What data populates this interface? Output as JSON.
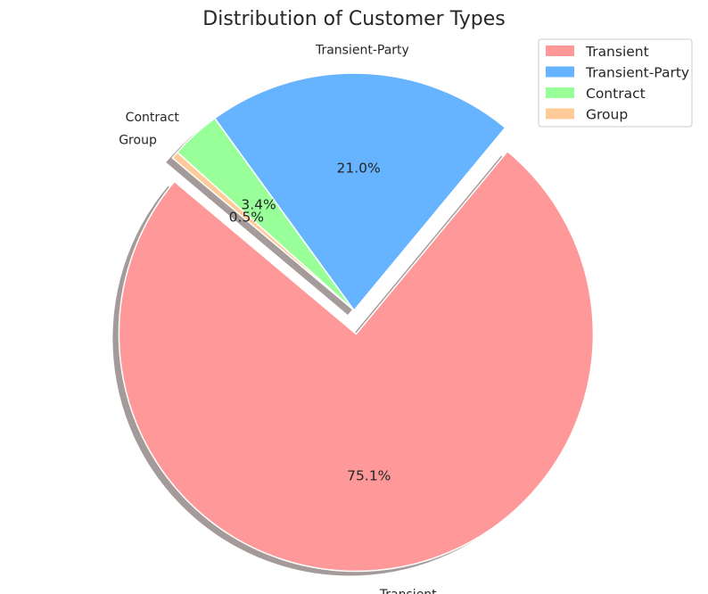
{
  "chart_data": {
    "type": "pie",
    "title": "Distribution of Customer Types",
    "categories": [
      "Transient",
      "Transient-Party",
      "Contract",
      "Group"
    ],
    "values": [
      75.1,
      21.0,
      3.4,
      0.5
    ],
    "percent_labels": [
      "75.1%",
      "21.0%",
      "3.4%",
      "0.5%"
    ],
    "colors": [
      "#ff9999",
      "#66b3ff",
      "#99ff99",
      "#ffcc99"
    ],
    "exploded": [
      true,
      false,
      false,
      false
    ],
    "start_angle_deg": 140,
    "shadow": true,
    "legend": {
      "position": "top-right",
      "entries": [
        "Transient",
        "Transient-Party",
        "Contract",
        "Group"
      ]
    }
  }
}
